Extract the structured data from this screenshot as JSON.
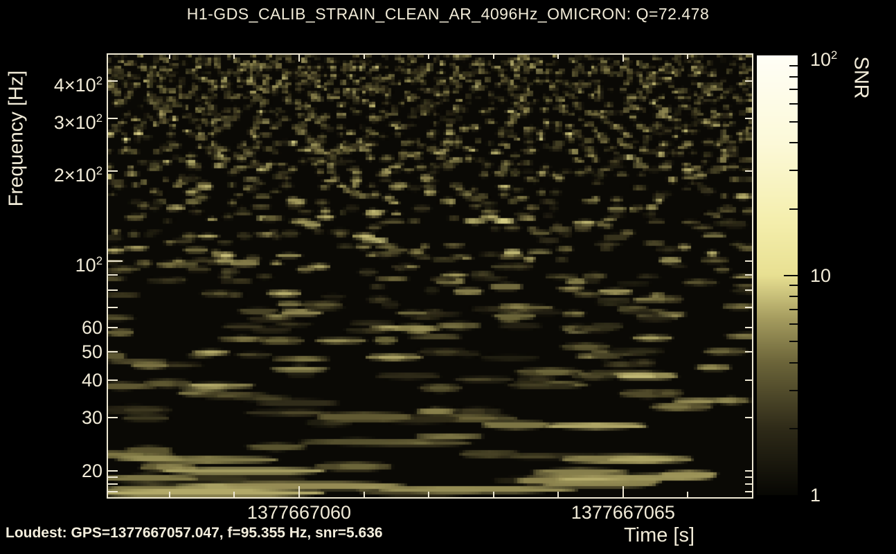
{
  "title": "H1-GDS_CALIB_STRAIN_CLEAN_AR_4096Hz_OMICRON: Q=72.478",
  "annotations": {
    "loudest": "Loudest: GPS=1377667057.047, f=95.355 Hz, snr=5.636"
  },
  "colors": {
    "page_background": "#000000",
    "frame_and_text": "#f0ead6",
    "plot_background": "#0a0905",
    "colormap_stops": [
      [
        0.0,
        "#070703"
      ],
      [
        0.15,
        "#2e2a18"
      ],
      [
        0.3,
        "#6b6439"
      ],
      [
        0.4,
        "#a49b5e"
      ],
      [
        0.5,
        "#e8e092"
      ],
      [
        0.62,
        "#f4eeac"
      ],
      [
        0.8,
        "#fcf9d8"
      ],
      [
        1.0,
        "#fffef6"
      ]
    ]
  },
  "chart_data": {
    "type": "heatmap",
    "subtype": "omicron-q-scan-spectrogram",
    "title": "H1-GDS_CALIB_STRAIN_CLEAN_AR_4096Hz_OMICRON: Q=72.478",
    "q_value": 72.478,
    "xlabel": "Time [s]",
    "ylabel": "Frequency [Hz]",
    "zlabel": "SNR",
    "x_range_gps_s": [
      1377667057.05,
      1377667066.99
    ],
    "x_major_ticks": [
      1377667060,
      1377667065
    ],
    "x_minor_tick_step_s": 1,
    "y_scale": "log",
    "y_range_hz": [
      16.3,
      490
    ],
    "y_labeled_ticks_hz": [
      20,
      30,
      40,
      50,
      60,
      100,
      200,
      300,
      400
    ],
    "y_minor_ticks_hz": [
      17,
      18,
      19,
      70,
      80,
      90
    ],
    "z_scale": "log",
    "z_range_snr": [
      1,
      100
    ],
    "z_labeled_ticks": [
      1,
      10,
      100
    ],
    "loudest_tile": {
      "gps_s": 1377667057.047,
      "frequency_hz": 95.355,
      "snr": 5.636
    },
    "max_visible_snr": 5.636,
    "legend_position": "right-colorbar",
    "grid": false,
    "description": "Background-noise Q-transform spectrogram: dim olive/khaki tiles on black, horizontally elongated streaks at low frequency, fine speckle above ~150 Hz; no loud trigger (SNR <= ~5.6)."
  }
}
